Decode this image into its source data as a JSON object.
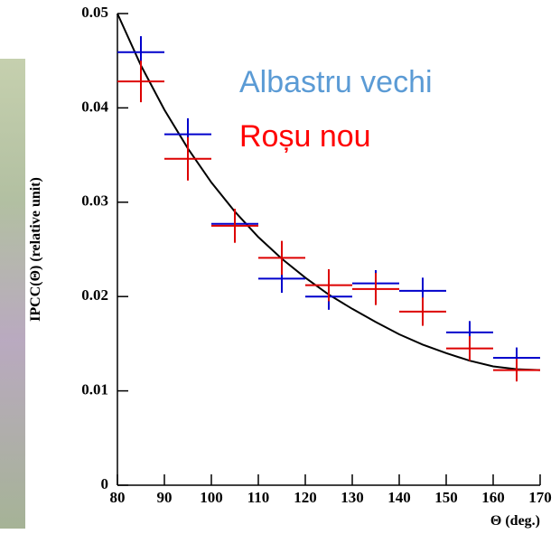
{
  "chart_data": {
    "type": "errorbar",
    "x_label": "Θ (deg.)",
    "y_label": "IPCC(Θ) (relative unit)",
    "xlim": [
      80,
      170
    ],
    "xticks": [
      80,
      90,
      100,
      110,
      120,
      130,
      140,
      150,
      160,
      170
    ],
    "ylim": [
      0,
      0.05
    ],
    "yticks": [
      0,
      0.01,
      0.02,
      0.03,
      0.04,
      0.05
    ],
    "x": [
      85,
      95,
      105,
      115,
      125,
      135,
      145,
      155,
      165
    ],
    "x_error": 5,
    "series": [
      {
        "name": "Albastru vechi",
        "color": "#0000cc",
        "legend_color": "#5b9bd5",
        "values": [
          0.0459,
          0.0372,
          0.0277,
          0.0219,
          0.02,
          0.0214,
          0.0206,
          0.0162,
          0.0135
        ],
        "errors": [
          0.0017,
          0.0017,
          0.0015,
          0.0015,
          0.0014,
          0.0014,
          0.0014,
          0.0012,
          0.0011
        ]
      },
      {
        "name": "Roșu nou",
        "color": "#dd0000",
        "legend_color": "#ff0000",
        "values": [
          0.0428,
          0.0346,
          0.0275,
          0.0241,
          0.0212,
          0.0208,
          0.0184,
          0.0145,
          0.0122
        ],
        "errors": [
          0.0022,
          0.0023,
          0.0018,
          0.0018,
          0.0017,
          0.0017,
          0.0015,
          0.0013,
          0.0012
        ]
      }
    ],
    "curve": {
      "color": "#000000",
      "x": [
        80,
        85,
        90,
        95,
        100,
        105,
        110,
        115,
        120,
        125,
        130,
        135,
        140,
        145,
        150,
        155,
        160,
        165,
        170
      ],
      "y": [
        0.05,
        0.0445,
        0.0398,
        0.0357,
        0.0321,
        0.029,
        0.0263,
        0.024,
        0.022,
        0.0202,
        0.0187,
        0.0173,
        0.016,
        0.0149,
        0.014,
        0.0132,
        0.0126,
        0.0123,
        0.0122
      ]
    }
  }
}
